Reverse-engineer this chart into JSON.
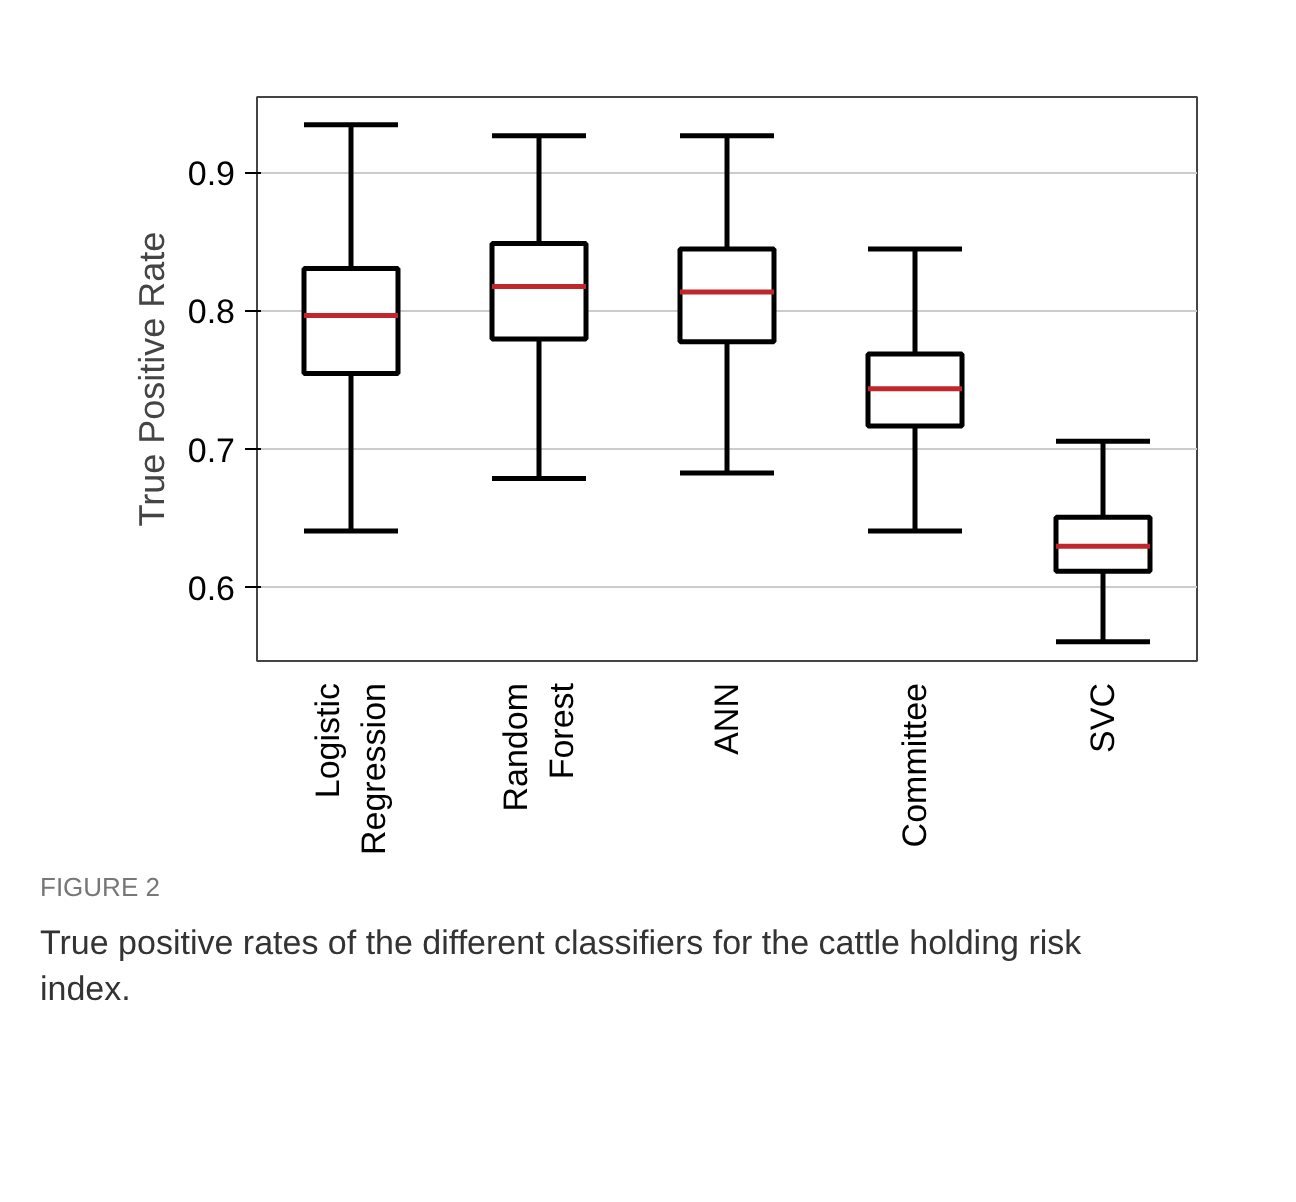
{
  "chart_data": {
    "type": "box",
    "ylabel": "True Positive Rate",
    "categories": [
      "Logistic Regression",
      "Random Forest",
      "ANN",
      "Committee",
      "SVC"
    ],
    "series": [
      {
        "color": "#000000",
        "boxes": [
          {
            "low": 0.641,
            "q1": 0.755,
            "median": 0.797,
            "q3": 0.831,
            "high": 0.935
          },
          {
            "low": 0.679,
            "q1": 0.78,
            "median": 0.818,
            "q3": 0.849,
            "high": 0.927
          },
          {
            "low": 0.683,
            "q1": 0.778,
            "median": 0.814,
            "q3": 0.845,
            "high": 0.927
          },
          {
            "low": 0.641,
            "q1": 0.717,
            "median": 0.744,
            "q3": 0.769,
            "high": 0.845
          },
          {
            "low": 0.561,
            "q1": 0.612,
            "median": 0.63,
            "q3": 0.651,
            "high": 0.706
          }
        ]
      }
    ],
    "ylim": [
      0.547,
      0.955
    ],
    "yticks": [
      0.6,
      0.7,
      0.8,
      0.9
    ],
    "grid": "y",
    "annotations": [
      "FIGURE 2",
      "True positive rates of the different classifiers for the cattle holding risk index."
    ]
  }
}
